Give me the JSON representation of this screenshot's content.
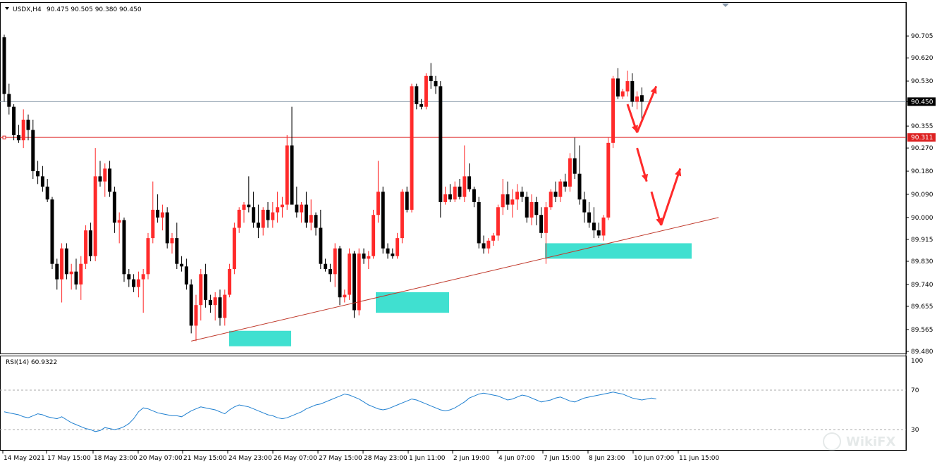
{
  "header": {
    "symbol_label": "USDX,H4",
    "ohlc_text": "90.475 90.505 90.380 90.450"
  },
  "rsi_panel": {
    "label": "RSI(14) 60.9322"
  },
  "watermark": {
    "text": "WikiFX"
  },
  "colors": {
    "up": "#ff2a2a",
    "down": "#000000",
    "rsi_line": "#1e7fd0",
    "trendline": "#c0392b",
    "zone": "#40e0d0",
    "price_line": "#8899aa",
    "level_line": "#dd2222",
    "arrow": "#ff2a2a"
  },
  "chart_data": [
    {
      "type": "candlestick",
      "symbol": "USDX",
      "timeframe": "H4",
      "ylim": [
        89.48,
        90.76
      ],
      "y_ticks": [
        "90.705",
        "90.620",
        "90.530",
        "90.450",
        "90.355",
        "90.270",
        "90.180",
        "90.090",
        "90.000",
        "89.915",
        "89.830",
        "89.740",
        "89.655",
        "89.565",
        "89.480"
      ],
      "x_tick_labels": [
        "14 May 2021",
        "17 May 15:00",
        "18 May 23:00",
        "20 May 07:00",
        "21 May 15:00",
        "24 May 23:00",
        "26 May 07:00",
        "27 May 15:00",
        "28 May 23:00",
        "1 Jun 11:00",
        "2 Jun 19:00",
        "4 Jun 07:00",
        "7 Jun 15:00",
        "8 Jun 23:00",
        "10 Jun 07:00",
        "11 Jun 15:00"
      ],
      "current_price": {
        "label": "90.450",
        "value": 90.45
      },
      "level_line": {
        "label": "90.311",
        "value": 90.311
      },
      "candles": [
        [
          90.7,
          90.71,
          90.45,
          90.48
        ],
        [
          90.48,
          90.52,
          90.4,
          90.43
        ],
        [
          90.43,
          90.44,
          90.3,
          90.32
        ],
        [
          90.32,
          90.36,
          90.29,
          90.3
        ],
        [
          90.3,
          90.42,
          90.27,
          90.38
        ],
        [
          90.38,
          90.4,
          90.3,
          90.34
        ],
        [
          90.34,
          90.38,
          90.15,
          90.18
        ],
        [
          90.18,
          90.22,
          90.13,
          90.16
        ],
        [
          90.16,
          90.2,
          90.1,
          90.12
        ],
        [
          90.12,
          90.15,
          90.06,
          90.07
        ],
        [
          90.07,
          90.08,
          89.8,
          89.82
        ],
        [
          89.82,
          89.84,
          89.72,
          89.76
        ],
        [
          89.76,
          89.9,
          89.67,
          89.88
        ],
        [
          89.88,
          89.9,
          89.76,
          89.78
        ],
        [
          89.78,
          89.82,
          89.72,
          89.79
        ],
        [
          89.79,
          89.84,
          89.72,
          89.74
        ],
        [
          89.74,
          89.85,
          89.68,
          89.82
        ],
        [
          89.82,
          89.97,
          89.8,
          89.95
        ],
        [
          89.95,
          89.98,
          89.83,
          89.85
        ],
        [
          89.85,
          90.27,
          89.83,
          90.16
        ],
        [
          90.16,
          90.22,
          90.12,
          90.14
        ],
        [
          90.14,
          90.21,
          90.08,
          90.19
        ],
        [
          90.19,
          90.22,
          90.08,
          90.1
        ],
        [
          90.1,
          90.12,
          89.94,
          89.98
        ],
        [
          89.98,
          90.02,
          89.9,
          89.99
        ],
        [
          89.99,
          90.0,
          89.75,
          89.78
        ],
        [
          89.78,
          89.8,
          89.73,
          89.76
        ],
        [
          89.76,
          89.78,
          89.71,
          89.73
        ],
        [
          89.73,
          89.79,
          89.69,
          89.76
        ],
        [
          89.76,
          89.8,
          89.63,
          89.78
        ],
        [
          89.78,
          89.94,
          89.76,
          89.92
        ],
        [
          89.92,
          90.14,
          89.9,
          90.03
        ],
        [
          90.03,
          90.09,
          89.98,
          90.0
        ],
        [
          90.0,
          90.05,
          89.95,
          90.02
        ],
        [
          90.02,
          90.04,
          89.88,
          89.9
        ],
        [
          89.9,
          89.94,
          89.86,
          89.92
        ],
        [
          89.92,
          89.98,
          89.8,
          89.82
        ],
        [
          89.82,
          89.85,
          89.79,
          89.81
        ],
        [
          89.81,
          89.84,
          89.72,
          89.74
        ],
        [
          89.74,
          89.76,
          89.55,
          89.58
        ],
        [
          89.58,
          89.7,
          89.52,
          89.66
        ],
        [
          89.66,
          89.8,
          89.6,
          89.78
        ],
        [
          89.78,
          89.82,
          89.65,
          89.68
        ],
        [
          89.68,
          89.7,
          89.63,
          89.66
        ],
        [
          89.66,
          89.71,
          89.6,
          89.69
        ],
        [
          89.69,
          89.72,
          89.58,
          89.61
        ],
        [
          89.61,
          89.72,
          89.58,
          89.7
        ],
        [
          89.7,
          89.82,
          89.69,
          89.8
        ],
        [
          89.8,
          89.98,
          89.78,
          89.96
        ],
        [
          89.96,
          90.04,
          89.94,
          90.03
        ],
        [
          90.03,
          90.06,
          89.98,
          90.05
        ],
        [
          90.05,
          90.16,
          90.02,
          90.04
        ],
        [
          90.04,
          90.1,
          89.96,
          89.98
        ],
        [
          89.98,
          90.05,
          89.92,
          89.96
        ],
        [
          89.96,
          90.04,
          89.93,
          90.03
        ],
        [
          90.03,
          90.06,
          89.96,
          89.99
        ],
        [
          89.99,
          90.06,
          89.96,
          90.02
        ],
        [
          90.02,
          90.1,
          89.98,
          90.04
        ],
        [
          90.04,
          90.08,
          90.0,
          90.05
        ],
        [
          90.05,
          90.32,
          90.03,
          90.28
        ],
        [
          90.28,
          90.43,
          90.06,
          90.05
        ],
        [
          90.05,
          90.12,
          90.0,
          90.02
        ],
        [
          90.02,
          90.06,
          89.98,
          90.05
        ],
        [
          90.05,
          90.1,
          89.96,
          89.98
        ],
        [
          89.98,
          90.07,
          89.95,
          90.01
        ],
        [
          90.01,
          90.02,
          89.93,
          89.96
        ],
        [
          89.96,
          90.03,
          89.8,
          89.82
        ],
        [
          89.82,
          89.84,
          89.79,
          89.8
        ],
        [
          89.8,
          89.82,
          89.75,
          89.78
        ],
        [
          89.78,
          89.9,
          89.73,
          89.88
        ],
        [
          89.88,
          89.89,
          89.66,
          89.69
        ],
        [
          89.69,
          89.72,
          89.67,
          89.7
        ],
        [
          89.7,
          89.88,
          89.68,
          89.86
        ],
        [
          89.86,
          89.87,
          89.61,
          89.64
        ],
        [
          89.64,
          89.88,
          89.62,
          89.86
        ],
        [
          89.86,
          89.88,
          89.82,
          89.84
        ],
        [
          89.84,
          89.87,
          89.8,
          89.85
        ],
        [
          89.85,
          90.03,
          89.84,
          90.01
        ],
        [
          90.01,
          90.22,
          89.98,
          90.1
        ],
        [
          90.1,
          90.12,
          89.86,
          89.88
        ],
        [
          89.88,
          89.9,
          89.84,
          89.86
        ],
        [
          89.86,
          89.88,
          89.84,
          89.85
        ],
        [
          89.85,
          89.94,
          89.84,
          89.92
        ],
        [
          89.92,
          90.11,
          89.9,
          90.1
        ],
        [
          90.1,
          90.12,
          90.02,
          90.03
        ],
        [
          90.03,
          90.52,
          90.02,
          90.51
        ],
        [
          90.51,
          90.52,
          90.42,
          90.44
        ],
        [
          90.44,
          90.46,
          90.42,
          90.43
        ],
        [
          90.43,
          90.56,
          90.42,
          90.55
        ],
        [
          90.55,
          90.6,
          90.5,
          90.53
        ],
        [
          90.53,
          90.55,
          90.48,
          90.51
        ],
        [
          90.51,
          90.53,
          90.0,
          90.06
        ],
        [
          90.06,
          90.12,
          90.05,
          90.09
        ],
        [
          90.09,
          90.13,
          90.06,
          90.07
        ],
        [
          90.07,
          90.14,
          90.06,
          90.12
        ],
        [
          90.12,
          90.15,
          90.07,
          90.08
        ],
        [
          90.08,
          90.28,
          90.06,
          90.16
        ],
        [
          90.16,
          90.21,
          90.1,
          90.11
        ],
        [
          90.11,
          90.12,
          90.04,
          90.06
        ],
        [
          90.06,
          90.08,
          89.88,
          89.9
        ],
        [
          89.9,
          89.93,
          89.86,
          89.88
        ],
        [
          89.88,
          89.92,
          89.86,
          89.91
        ],
        [
          89.91,
          89.94,
          89.89,
          89.93
        ],
        [
          89.93,
          90.05,
          89.91,
          90.04
        ],
        [
          90.04,
          90.15,
          90.01,
          90.09
        ],
        [
          90.09,
          90.14,
          90.03,
          90.05
        ],
        [
          90.05,
          90.11,
          90.0,
          90.07
        ],
        [
          90.07,
          90.13,
          90.03,
          90.1
        ],
        [
          90.1,
          90.12,
          90.06,
          90.08
        ],
        [
          90.08,
          90.1,
          89.98,
          90.0
        ],
        [
          90.0,
          90.09,
          89.97,
          90.06
        ],
        [
          90.06,
          90.08,
          89.97,
          90.01
        ],
        [
          90.01,
          90.04,
          89.92,
          89.94
        ],
        [
          89.94,
          90.06,
          89.82,
          90.04
        ],
        [
          90.04,
          90.11,
          90.03,
          90.1
        ],
        [
          90.1,
          90.14,
          90.06,
          90.08
        ],
        [
          90.08,
          90.15,
          90.06,
          90.14
        ],
        [
          90.14,
          90.17,
          90.1,
          90.12
        ],
        [
          90.12,
          90.25,
          90.1,
          90.23
        ],
        [
          90.23,
          90.31,
          90.15,
          90.17
        ],
        [
          90.17,
          90.28,
          90.05,
          90.07
        ],
        [
          90.07,
          90.1,
          89.98,
          90.02
        ],
        [
          90.02,
          90.06,
          89.96,
          89.98
        ],
        [
          89.98,
          90.04,
          89.92,
          89.95
        ],
        [
          89.95,
          89.98,
          89.92,
          89.93
        ],
        [
          89.93,
          90.01,
          89.91,
          90.0
        ],
        [
          90.0,
          90.31,
          89.99,
          90.29
        ],
        [
          90.29,
          90.55,
          90.27,
          90.54
        ],
        [
          90.54,
          90.58,
          90.46,
          90.47
        ],
        [
          90.47,
          90.5,
          90.46,
          90.49
        ],
        [
          90.49,
          90.57,
          90.47,
          90.53
        ],
        [
          90.53,
          90.56,
          90.43,
          90.45
        ],
        [
          90.45,
          90.49,
          90.42,
          90.47
        ],
        [
          90.475,
          90.505,
          90.38,
          90.45
        ]
      ],
      "support_zones": [
        {
          "y_low": 89.5,
          "y_high": 89.56
        },
        {
          "y_low": 89.63,
          "y_high": 89.71
        },
        {
          "y_low": 89.84,
          "y_high": 89.9
        }
      ],
      "trendline": {
        "from_candle": 39,
        "from_value": 89.52,
        "to_candle": 149,
        "to_value": 90.0
      },
      "projection_arrows": [
        {
          "from": [
            130,
            90.44
          ],
          "to": [
            132,
            90.33
          ]
        },
        {
          "from": [
            132,
            90.33
          ],
          "to": [
            136,
            90.51
          ]
        },
        {
          "from": [
            132,
            90.27
          ],
          "to": [
            134,
            90.14
          ]
        },
        {
          "from": [
            135,
            90.1
          ],
          "to": [
            137,
            89.97
          ]
        },
        {
          "from": [
            137,
            89.97
          ],
          "to": [
            141,
            90.19
          ]
        }
      ]
    },
    {
      "type": "line",
      "name": "RSI(14)",
      "ylim": [
        0,
        100
      ],
      "y_ticks": [
        100,
        70,
        30,
        0
      ],
      "reference_levels": [
        70,
        30
      ],
      "values": [
        48,
        47,
        46,
        45,
        43,
        42,
        44,
        46,
        45,
        43,
        42,
        41,
        43,
        40,
        37,
        35,
        33,
        31,
        30,
        28,
        29,
        32,
        31,
        30,
        31,
        33,
        36,
        41,
        48,
        52,
        51,
        49,
        47,
        46,
        45,
        44,
        44,
        43,
        46,
        49,
        51,
        53,
        52,
        51,
        50,
        48,
        46,
        50,
        53,
        55,
        54,
        53,
        51,
        49,
        47,
        45,
        44,
        42,
        41,
        42,
        44,
        46,
        48,
        51,
        53,
        55,
        56,
        58,
        60,
        62,
        64,
        66,
        65,
        63,
        61,
        58,
        55,
        53,
        51,
        50,
        51,
        53,
        55,
        57,
        59,
        61,
        60,
        58,
        56,
        54,
        52,
        50,
        49,
        50,
        52,
        55,
        58,
        62,
        64,
        66,
        67,
        66,
        65,
        64,
        62,
        60,
        61,
        63,
        65,
        64,
        62,
        60,
        58,
        59,
        60,
        62,
        63,
        61,
        59,
        58,
        60,
        62,
        63,
        64,
        65,
        66,
        67,
        68,
        67,
        66,
        64,
        62,
        61,
        60,
        61,
        62,
        61
      ]
    }
  ]
}
